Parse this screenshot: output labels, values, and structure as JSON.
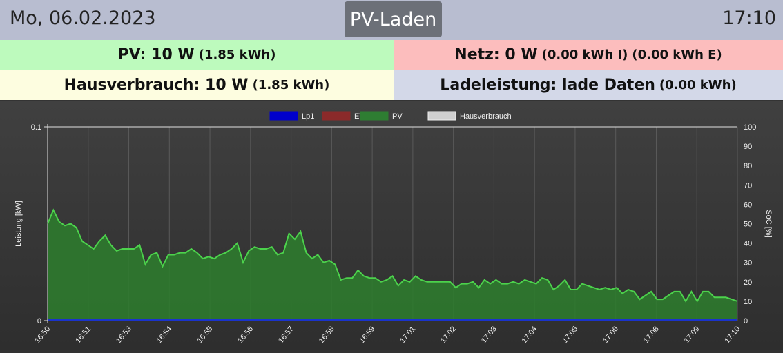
{
  "header": {
    "date": "Mo, 06.02.2023",
    "title": "PV-Laden",
    "time": "17:10"
  },
  "tiles": {
    "pv": {
      "label": "PV: 10 W",
      "detail": "(1.85 kWh)",
      "color": "#bdfabd"
    },
    "grid": {
      "label": "Netz: 0 W",
      "detail_import": "(0.00 kWh I)",
      "detail_export": "(0.00 kWh E)",
      "color": "#fcbdbd"
    },
    "house": {
      "label": "Hausverbrauch: 10 W",
      "detail": "(1.85 kWh)",
      "color": "#fdfde0"
    },
    "charge": {
      "label": "Ladeleistung: lade Daten",
      "detail": "(0.00 kWh)",
      "color": "#d3d8e8"
    }
  },
  "chart_data": {
    "type": "area",
    "legend_position": "top-center",
    "legend": [
      {
        "name": "Lp1",
        "color": "#0000cc"
      },
      {
        "name": "EVU",
        "color": "#8b2a2a"
      },
      {
        "name": "PV",
        "color": "#2e7d32"
      },
      {
        "name": "Hausverbrauch",
        "color": "#d0d0d0"
      }
    ],
    "ylabel_left": "Leistung [kW]",
    "ylabel_right": "SoC [%]",
    "y_left_range": [
      0,
      0.1
    ],
    "y_left_ticks": [
      "0.1",
      "0"
    ],
    "y_right_range": [
      0,
      100
    ],
    "y_right_ticks": [
      "100",
      "90",
      "80",
      "70",
      "60",
      "50",
      "40",
      "30",
      "20",
      "10",
      "0"
    ],
    "x_ticks": [
      "16:50",
      "16:51",
      "16:53",
      "16:54",
      "16:55",
      "16:56",
      "16:57",
      "16:58",
      "16:59",
      "17:01",
      "17:02",
      "17:03",
      "17:04",
      "17:05",
      "17:06",
      "17:08",
      "17:09",
      "17:10"
    ],
    "grid": true,
    "series": [
      {
        "name": "PV",
        "line_color": "#4cd24c",
        "fill_color": "#2e7a2e",
        "values": [
          0.05,
          0.057,
          0.051,
          0.049,
          0.05,
          0.048,
          0.041,
          0.039,
          0.037,
          0.041,
          0.044,
          0.039,
          0.036,
          0.037,
          0.037,
          0.037,
          0.039,
          0.029,
          0.034,
          0.035,
          0.028,
          0.034,
          0.034,
          0.035,
          0.035,
          0.037,
          0.035,
          0.032,
          0.033,
          0.032,
          0.034,
          0.035,
          0.037,
          0.04,
          0.03,
          0.036,
          0.038,
          0.037,
          0.037,
          0.038,
          0.034,
          0.035,
          0.045,
          0.042,
          0.046,
          0.035,
          0.032,
          0.034,
          0.03,
          0.031,
          0.029,
          0.021,
          0.022,
          0.022,
          0.026,
          0.023,
          0.022,
          0.022,
          0.02,
          0.021,
          0.023,
          0.018,
          0.021,
          0.02,
          0.023,
          0.021,
          0.02,
          0.02,
          0.02,
          0.02,
          0.02,
          0.017,
          0.019,
          0.019,
          0.02,
          0.017,
          0.021,
          0.019,
          0.021,
          0.019,
          0.019,
          0.02,
          0.019,
          0.021,
          0.02,
          0.019,
          0.022,
          0.021,
          0.016,
          0.018,
          0.021,
          0.016,
          0.016,
          0.019,
          0.018,
          0.017,
          0.016,
          0.017,
          0.016,
          0.017,
          0.014,
          0.016,
          0.015,
          0.011,
          0.013,
          0.015,
          0.011,
          0.011,
          0.013,
          0.015,
          0.015,
          0.01,
          0.015,
          0.01,
          0.015,
          0.015,
          0.012,
          0.012,
          0.012,
          0.011,
          0.01
        ]
      },
      {
        "name": "Lp1",
        "line_color": "#1a33cc",
        "values": [
          0,
          0
        ]
      }
    ]
  }
}
